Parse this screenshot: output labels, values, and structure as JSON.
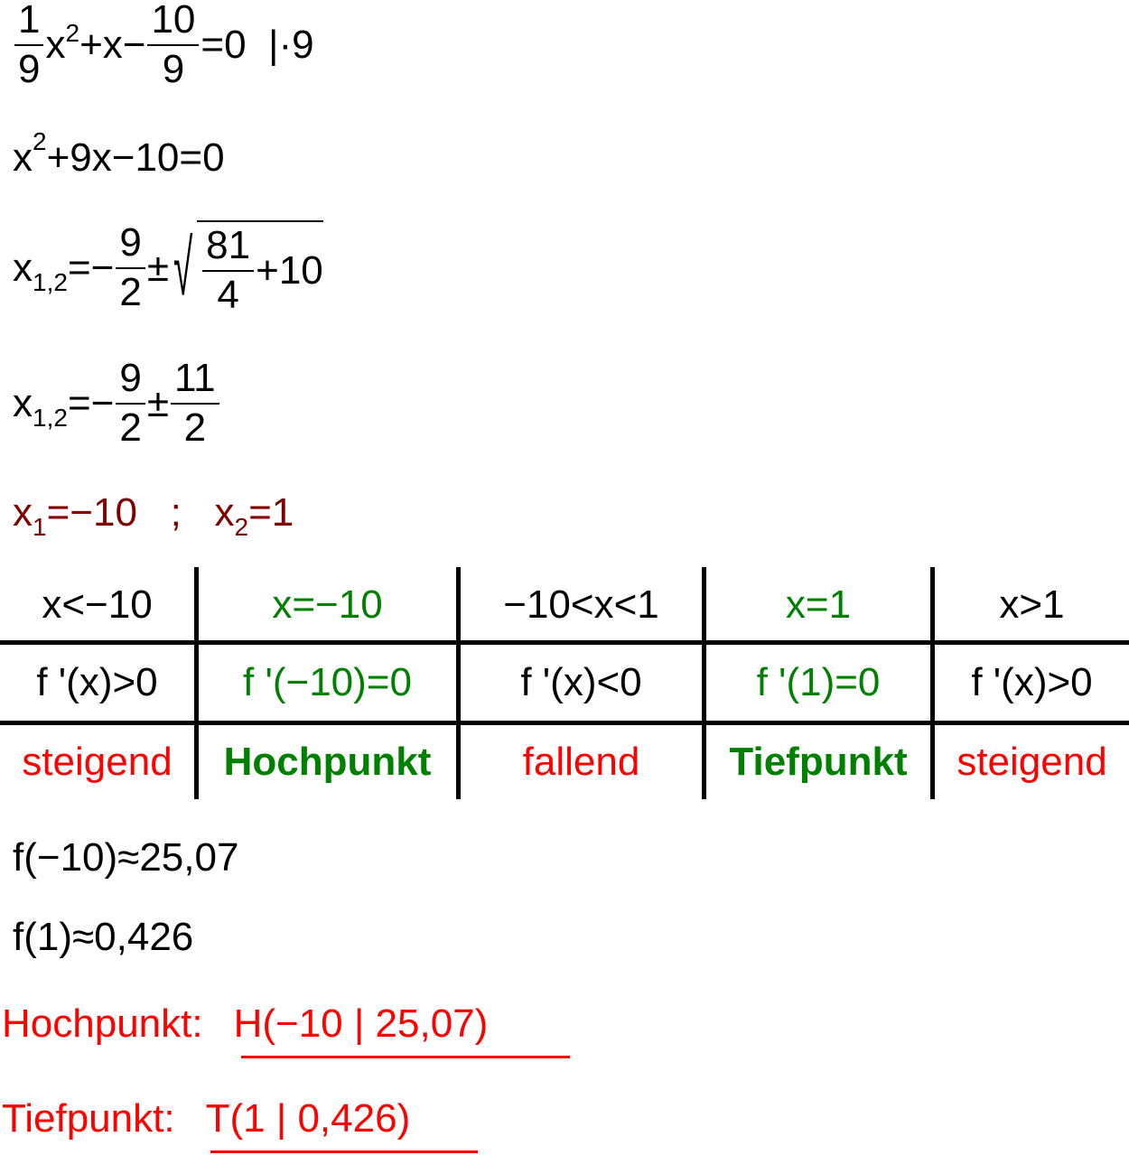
{
  "colors": {
    "result": "#800000",
    "extremum": "#008000",
    "monotony": "#ff0000",
    "final": "#ff0000"
  },
  "step1": {
    "f1_num": "1",
    "f1_den": "9",
    "a": "x",
    "a_exp": "2",
    "b": "+x−",
    "f2_num": "10",
    "f2_den": "9",
    "c": "=0",
    "op": "  |·9"
  },
  "step2": {
    "a": "x",
    "exp": "2",
    "b": "+9x−10=0"
  },
  "step3": {
    "lhs": "x",
    "sub": "1,2",
    "eq": "=−",
    "f_num": "9",
    "f_den": "2",
    "pm": "±",
    "r_num": "81",
    "r_den": "4",
    "r_rest": "+10"
  },
  "step4": {
    "lhs": "x",
    "sub": "1,2",
    "eq": "=−",
    "f_num": "9",
    "f_den": "2",
    "pm": "±",
    "g_num": "11",
    "g_den": "2"
  },
  "solutions": {
    "x1": "x",
    "x1_sub": "1",
    "x1_val": "=−10",
    "sep": "   ;   ",
    "x2": "x",
    "x2_sub": "2",
    "x2_val": "=1"
  },
  "table": {
    "row1": [
      "x<−10",
      "x=−10",
      "−10<x<1",
      "x=1",
      "x>1"
    ],
    "row2": [
      "f '(x)>0",
      "f '(−10)=0",
      "f '(x)<0",
      "f '(1)=0",
      "f '(x)>0"
    ],
    "row3": [
      "steigend",
      "Hochpunkt",
      "fallend",
      "Tiefpunkt",
      "steigend"
    ]
  },
  "values": {
    "f1": "f(−10)≈25,07",
    "f2": "f(1)≈0,426"
  },
  "result": {
    "hp_label": "Hochpunkt:",
    "hp_value": "H(−10 | 25,07)",
    "tp_label": "Tiefpunkt:",
    "tp_value": "T(1 | 0,426)"
  }
}
